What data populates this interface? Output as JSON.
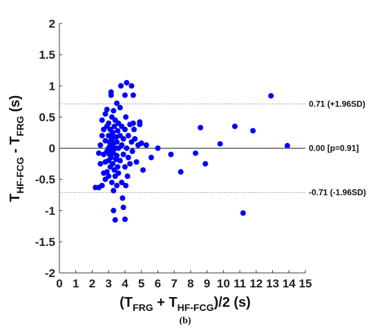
{
  "chart_data": {
    "type": "scatter",
    "title": "",
    "caption": "(b)",
    "xlabel": {
      "main": "(T",
      "sub1": "FRG",
      "plus": " + T",
      "sub2": "HF-FCG",
      "tail": ")/2 (s)"
    },
    "ylabel": {
      "main": "T",
      "sub1": "HF-FCG",
      "minus": " - T",
      "sub2": "FRG",
      "tail": " (s)"
    },
    "xlim": [
      0,
      15
    ],
    "ylim": [
      -2,
      2
    ],
    "x_ticks": [
      0,
      1,
      2,
      3,
      4,
      5,
      6,
      7,
      8,
      9,
      10,
      11,
      12,
      13,
      14,
      15
    ],
    "y_ticks": [
      -2,
      -1.5,
      -1,
      -0.5,
      0,
      0.5,
      1,
      1.5,
      2
    ],
    "y_tick_labels": [
      "-2",
      "-1.5",
      "-1",
      "-0.5",
      "0",
      "0.5",
      "1",
      "1.5",
      "2"
    ],
    "grid": false,
    "marker_color": "#0000ff",
    "reference_lines": [
      {
        "y": 0.71,
        "label": "0.71 (+1.96SD)",
        "style": "dotted"
      },
      {
        "y": 0.0,
        "label": "0.00 [p=0.91]",
        "style": "solid"
      },
      {
        "y": -0.71,
        "label": "-0.71 (-1.96SD)",
        "style": "dotted"
      }
    ],
    "points": [
      [
        2.2,
        -0.63
      ],
      [
        2.4,
        -0.63
      ],
      [
        2.6,
        -0.6
      ],
      [
        2.4,
        -0.08
      ],
      [
        2.5,
        0.05
      ],
      [
        2.5,
        -0.25
      ],
      [
        2.6,
        0.2
      ],
      [
        2.6,
        0.45
      ],
      [
        2.7,
        -0.4
      ],
      [
        2.7,
        0.3
      ],
      [
        2.7,
        -0.1
      ],
      [
        2.8,
        0.55
      ],
      [
        2.8,
        -0.5
      ],
      [
        2.8,
        0.12
      ],
      [
        2.8,
        -0.22
      ],
      [
        2.9,
        0.62
      ],
      [
        2.9,
        -0.05
      ],
      [
        2.9,
        0.35
      ],
      [
        2.9,
        -0.38
      ],
      [
        3.0,
        0.0
      ],
      [
        3.0,
        0.2
      ],
      [
        3.0,
        -0.2
      ],
      [
        3.0,
        0.4
      ],
      [
        3.0,
        -0.45
      ],
      [
        3.05,
        0.1
      ],
      [
        3.05,
        -0.1
      ],
      [
        3.1,
        0.3
      ],
      [
        3.1,
        -0.3
      ],
      [
        3.1,
        0.05
      ],
      [
        3.1,
        -0.05
      ],
      [
        3.15,
        0.9
      ],
      [
        3.15,
        0.85
      ],
      [
        3.15,
        0.2
      ],
      [
        3.15,
        -0.15
      ],
      [
        3.2,
        0.0
      ],
      [
        3.2,
        0.5
      ],
      [
        3.2,
        -0.55
      ],
      [
        3.2,
        0.15
      ],
      [
        3.25,
        -0.25
      ],
      [
        3.25,
        0.25
      ],
      [
        3.3,
        0.6
      ],
      [
        3.3,
        -1.0
      ],
      [
        3.3,
        -0.68
      ],
      [
        3.3,
        0.08
      ],
      [
        3.3,
        -0.08
      ],
      [
        3.35,
        0.35
      ],
      [
        3.35,
        -0.35
      ],
      [
        3.4,
        0.0
      ],
      [
        3.4,
        -1.15
      ],
      [
        3.4,
        0.45
      ],
      [
        3.4,
        -0.45
      ],
      [
        3.45,
        0.18
      ],
      [
        3.45,
        -0.18
      ],
      [
        3.5,
        0.1
      ],
      [
        3.5,
        -0.12
      ],
      [
        3.5,
        0.72
      ],
      [
        3.5,
        -0.6
      ],
      [
        3.55,
        0.28
      ],
      [
        3.55,
        -0.3
      ],
      [
        3.6,
        0.0
      ],
      [
        3.6,
        0.4
      ],
      [
        3.6,
        -0.4
      ],
      [
        3.7,
        0.65
      ],
      [
        3.7,
        -0.2
      ],
      [
        3.7,
        0.2
      ],
      [
        3.75,
        1.0
      ],
      [
        3.8,
        -0.55
      ],
      [
        3.8,
        0.05
      ],
      [
        3.8,
        0.35
      ],
      [
        3.85,
        -0.8
      ],
      [
        3.9,
        -0.95
      ],
      [
        3.9,
        0.15
      ],
      [
        3.9,
        -0.1
      ],
      [
        4.0,
        -1.14
      ],
      [
        4.0,
        0.85
      ],
      [
        4.0,
        0.3
      ],
      [
        4.0,
        -0.3
      ],
      [
        4.05,
        -0.6
      ],
      [
        4.05,
        0.5
      ],
      [
        4.1,
        1.05
      ],
      [
        4.1,
        0.0
      ],
      [
        4.15,
        -0.45
      ],
      [
        4.2,
        0.2
      ],
      [
        4.2,
        -0.15
      ],
      [
        4.3,
        0.38
      ],
      [
        4.3,
        -0.25
      ],
      [
        4.4,
        1.0
      ],
      [
        4.4,
        0.1
      ],
      [
        4.45,
        -0.05
      ],
      [
        4.5,
        0.85
      ],
      [
        4.5,
        0.4
      ],
      [
        4.55,
        0.3
      ],
      [
        4.6,
        0.15
      ],
      [
        4.7,
        -0.22
      ],
      [
        4.8,
        0.05
      ],
      [
        4.9,
        0.38
      ],
      [
        4.9,
        0.42
      ],
      [
        5.0,
        0.08
      ],
      [
        5.1,
        -0.35
      ],
      [
        5.3,
        0.05
      ],
      [
        5.6,
        -0.15
      ],
      [
        6.0,
        0.0
      ],
      [
        6.8,
        -0.1
      ],
      [
        7.4,
        -0.38
      ],
      [
        8.3,
        -0.08
      ],
      [
        8.6,
        0.33
      ],
      [
        8.9,
        -0.25
      ],
      [
        9.8,
        0.07
      ],
      [
        10.7,
        0.35
      ],
      [
        11.2,
        -1.04
      ],
      [
        11.8,
        0.28
      ],
      [
        12.9,
        0.84
      ],
      [
        13.9,
        0.04
      ]
    ]
  }
}
